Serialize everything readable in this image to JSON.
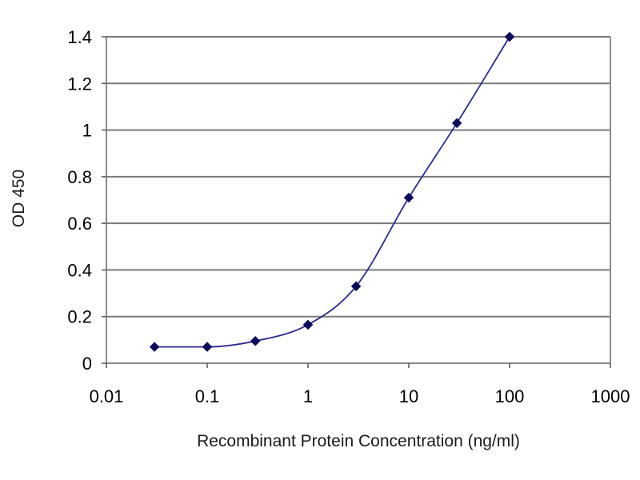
{
  "chart_data": {
    "type": "line",
    "title": "",
    "xlabel": "Recombinant Protein Concentration (ng/ml)",
    "ylabel": "OD 450",
    "x_scale": "log",
    "xlim": [
      0.01,
      1000
    ],
    "ylim": [
      0,
      1.4
    ],
    "x_ticks": [
      0.01,
      0.1,
      1,
      10,
      100,
      1000
    ],
    "x_tick_labels": [
      "0.01",
      "0.1",
      "1",
      "10",
      "100",
      "1000"
    ],
    "y_ticks": [
      0,
      0.2,
      0.4,
      0.6,
      0.8,
      1.0,
      1.2,
      1.4
    ],
    "y_tick_labels": [
      "0",
      "0.2",
      "0.4",
      "0.6",
      "0.8",
      "1",
      "1.2",
      "1.4"
    ],
    "grid": "horizontal",
    "legend": "none",
    "series": [
      {
        "x": [
          0.03,
          0.1,
          0.3,
          1,
          3,
          10,
          30,
          100
        ],
        "y": [
          0.07,
          0.07,
          0.095,
          0.165,
          0.33,
          0.71,
          1.03,
          1.4
        ],
        "color": "#2b2b8f",
        "marker": "diamond",
        "marker_color": "#0a0a5c"
      }
    ],
    "colors": {
      "plot_background": "#ffffff",
      "grid": "#7a7a7a",
      "frame": "#8a8a8a"
    }
  }
}
